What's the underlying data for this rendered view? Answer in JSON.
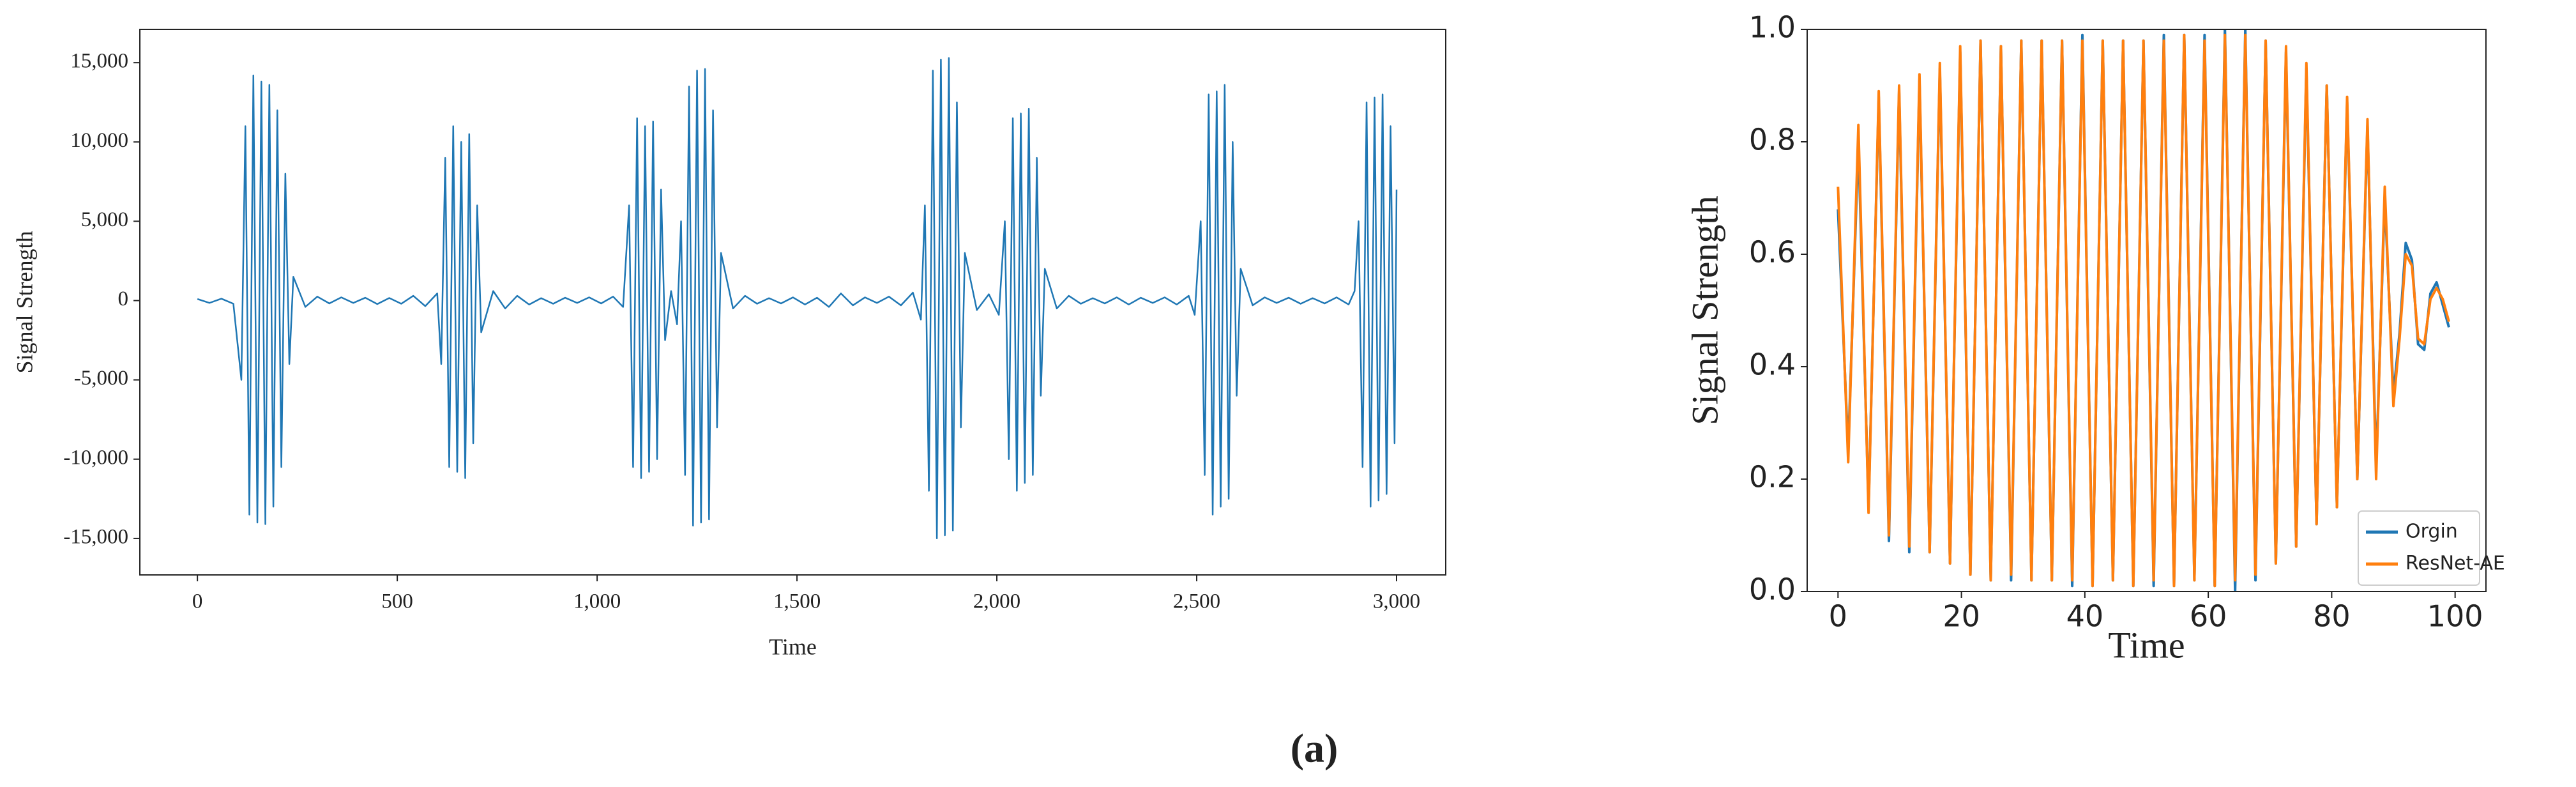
{
  "chart_data": [
    {
      "type": "line",
      "ylabel": "Signal Strength",
      "xlabel": "Time",
      "xlim": [
        -144,
        3123
      ],
      "ylim": [
        -17300,
        17100
      ],
      "xticks": [
        0,
        500,
        {
          "value": 1000,
          "label": "1,000"
        },
        {
          "value": 1500,
          "label": "1,500"
        },
        {
          "value": 2000,
          "label": "2,000"
        },
        {
          "value": 2500,
          "label": "2,500"
        },
        {
          "value": 3000,
          "label": "3,000"
        }
      ],
      "yticks": [
        {
          "value": -15000,
          "label": "-15,000"
        },
        {
          "value": -10000,
          "label": "-10,000"
        },
        {
          "value": -5000,
          "label": "-5,000"
        },
        0,
        {
          "value": 5000,
          "label": "5,000"
        },
        {
          "value": 10000,
          "label": "10,000"
        },
        {
          "value": 15000,
          "label": "15,000"
        }
      ],
      "series": [
        {
          "color": "#1f77b4",
          "x": [
            0,
            30,
            60,
            90,
            110,
            120,
            130,
            140,
            150,
            160,
            170,
            180,
            190,
            200,
            210,
            220,
            230,
            240,
            270,
            300,
            330,
            360,
            390,
            420,
            450,
            480,
            510,
            540,
            570,
            600,
            610,
            620,
            630,
            640,
            650,
            660,
            670,
            680,
            690,
            700,
            710,
            740,
            770,
            800,
            830,
            860,
            890,
            920,
            950,
            980,
            1010,
            1040,
            1065,
            1080,
            1090,
            1100,
            1110,
            1120,
            1130,
            1140,
            1150,
            1160,
            1170,
            1185,
            1200,
            1210,
            1220,
            1230,
            1240,
            1250,
            1260,
            1270,
            1280,
            1290,
            1300,
            1310,
            1340,
            1370,
            1400,
            1430,
            1460,
            1490,
            1520,
            1550,
            1580,
            1610,
            1640,
            1670,
            1700,
            1730,
            1760,
            1790,
            1810,
            1820,
            1830,
            1840,
            1850,
            1860,
            1870,
            1880,
            1890,
            1900,
            1910,
            1920,
            1950,
            1980,
            2005,
            2020,
            2030,
            2040,
            2050,
            2060,
            2070,
            2080,
            2090,
            2100,
            2110,
            2120,
            2150,
            2180,
            2210,
            2240,
            2270,
            2300,
            2330,
            2360,
            2390,
            2420,
            2450,
            2480,
            2495,
            2510,
            2520,
            2530,
            2540,
            2550,
            2560,
            2570,
            2580,
            2590,
            2600,
            2610,
            2640,
            2670,
            2700,
            2730,
            2760,
            2790,
            2820,
            2850,
            2880,
            2895,
            2905,
            2915,
            2925,
            2935,
            2945,
            2955,
            2965,
            2975,
            2985,
            2995,
            3000
          ],
          "values": [
            100,
            -150,
            120,
            -200,
            -5000,
            11000,
            -13500,
            14200,
            -14000,
            13800,
            -14100,
            13600,
            -13000,
            12000,
            -10500,
            8000,
            -4000,
            1500,
            -400,
            250,
            -180,
            200,
            -150,
            180,
            -220,
            160,
            -200,
            300,
            -350,
            450,
            -4000,
            9000,
            -10500,
            11000,
            -10800,
            10000,
            -11200,
            10500,
            -9000,
            6000,
            -2000,
            600,
            -500,
            300,
            -250,
            150,
            -200,
            180,
            -150,
            200,
            -180,
            250,
            -400,
            6000,
            -10500,
            11500,
            -11200,
            11000,
            -10800,
            11300,
            -10000,
            7000,
            -2500,
            600,
            -1500,
            5000,
            -11000,
            13500,
            -14200,
            14500,
            -14000,
            14600,
            -13800,
            12000,
            -8000,
            3000,
            -500,
            300,
            -200,
            150,
            -180,
            200,
            -250,
            180,
            -400,
            450,
            -300,
            200,
            -150,
            250,
            -300,
            500,
            -1200,
            6000,
            -12000,
            14500,
            -15000,
            15200,
            -14800,
            15300,
            -14500,
            12500,
            -8000,
            3000,
            -600,
            400,
            -900,
            5000,
            -10000,
            11500,
            -12000,
            11800,
            -11500,
            12100,
            -11000,
            9000,
            -6000,
            2000,
            -500,
            300,
            -200,
            150,
            -180,
            200,
            -250,
            180,
            -150,
            200,
            -250,
            300,
            -900,
            5000,
            -11000,
            13000,
            -13500,
            13200,
            -13000,
            13600,
            -12500,
            10000,
            -6000,
            2000,
            -300,
            200,
            -150,
            180,
            -200,
            150,
            -180,
            200,
            -250,
            600,
            5000,
            -10500,
            12500,
            -13000,
            12800,
            -12600,
            13000,
            -12200,
            11000,
            -9000,
            7000
          ]
        }
      ]
    },
    {
      "type": "line",
      "ylabel": "Signal Strength",
      "xlabel": "Time",
      "xlim": [
        -5,
        105
      ],
      "ylim": [
        0,
        1
      ],
      "xticks": [
        0,
        20,
        40,
        60,
        80,
        100
      ],
      "yticks": [
        {
          "value": 0,
          "label": "0.0"
        },
        {
          "value": 0.2,
          "label": "0.2"
        },
        {
          "value": 0.4,
          "label": "0.4"
        },
        {
          "value": 0.6,
          "label": "0.6"
        },
        {
          "value": 0.8,
          "label": "0.8"
        },
        {
          "value": 1,
          "label": "1.0"
        }
      ],
      "legend": "lower right",
      "x": [
        0,
        1.65,
        3.3,
        4.95,
        6.6,
        8.25,
        9.9,
        11.55,
        13.2,
        14.85,
        16.5,
        18.15,
        19.8,
        21.45,
        23.1,
        24.75,
        26.4,
        28.05,
        29.7,
        31.35,
        33,
        34.65,
        36.3,
        37.95,
        39.6,
        41.25,
        42.9,
        44.55,
        46.2,
        47.85,
        49.5,
        51.15,
        52.8,
        54.45,
        56.1,
        57.75,
        59.4,
        61.05,
        62.7,
        64.35,
        66,
        67.65,
        69.3,
        70.95,
        72.6,
        74.25,
        75.9,
        77.55,
        79.2,
        80.85,
        82.5,
        84.15,
        85.8,
        87.2,
        88.6,
        90,
        91,
        92,
        93,
        94,
        95,
        96,
        97,
        98,
        99
      ],
      "series": [
        {
          "name": "Orgin",
          "color": "#1f77b4",
          "values": [
            0.68,
            0.25,
            0.8,
            0.15,
            0.88,
            0.09,
            0.89,
            0.07,
            0.91,
            0.07,
            0.93,
            0.05,
            0.96,
            0.03,
            0.98,
            0.02,
            0.97,
            0.02,
            0.98,
            0.02,
            0.98,
            0.02,
            0.98,
            0.01,
            0.99,
            0.01,
            0.98,
            0.02,
            0.98,
            0.01,
            0.98,
            0.01,
            0.99,
            0.01,
            0.99,
            0.02,
            0.99,
            0.01,
            1.0,
            0.0,
            1.0,
            0.02,
            0.98,
            0.05,
            0.96,
            0.08,
            0.93,
            0.12,
            0.9,
            0.15,
            0.87,
            0.2,
            0.83,
            0.22,
            0.7,
            0.35,
            0.46,
            0.62,
            0.59,
            0.44,
            0.43,
            0.53,
            0.55,
            0.51,
            0.47
          ]
        },
        {
          "name": "ResNet-AE",
          "color": "#ff7f0e",
          "values": [
            0.72,
            0.23,
            0.83,
            0.14,
            0.89,
            0.1,
            0.9,
            0.08,
            0.92,
            0.07,
            0.94,
            0.05,
            0.97,
            0.03,
            0.98,
            0.02,
            0.97,
            0.03,
            0.98,
            0.02,
            0.98,
            0.02,
            0.98,
            0.02,
            0.98,
            0.01,
            0.98,
            0.02,
            0.98,
            0.01,
            0.98,
            0.02,
            0.98,
            0.01,
            0.99,
            0.02,
            0.98,
            0.01,
            0.99,
            0.02,
            0.99,
            0.03,
            0.98,
            0.05,
            0.97,
            0.08,
            0.94,
            0.12,
            0.9,
            0.15,
            0.88,
            0.2,
            0.84,
            0.2,
            0.72,
            0.33,
            0.45,
            0.6,
            0.58,
            0.45,
            0.44,
            0.52,
            0.54,
            0.52,
            0.48
          ]
        }
      ]
    }
  ],
  "figure_label": "(a)"
}
